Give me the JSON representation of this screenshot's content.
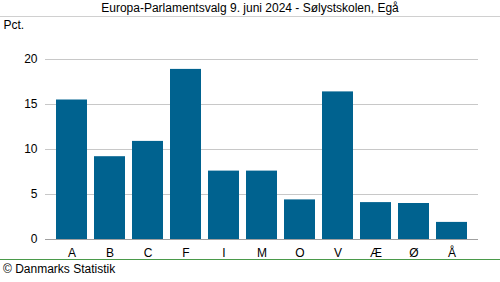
{
  "chart_data": {
    "type": "bar",
    "title": "Europa-Parlamentsvalg 9. juni 2024 - Sølystskolen, Egå",
    "y_label": "Pct.",
    "caption": "© Danmarks Statistik",
    "categories": [
      "A",
      "B",
      "C",
      "F",
      "I",
      "M",
      "O",
      "V",
      "Æ",
      "Ø",
      "Å"
    ],
    "values": [
      15.5,
      9.2,
      10.9,
      18.9,
      7.6,
      7.6,
      4.4,
      16.4,
      4.1,
      4.0,
      1.9
    ],
    "color": "#00628f",
    "ylim": [
      0,
      20
    ],
    "yticks": [
      0,
      5,
      10,
      15,
      20
    ],
    "grid": true
  }
}
